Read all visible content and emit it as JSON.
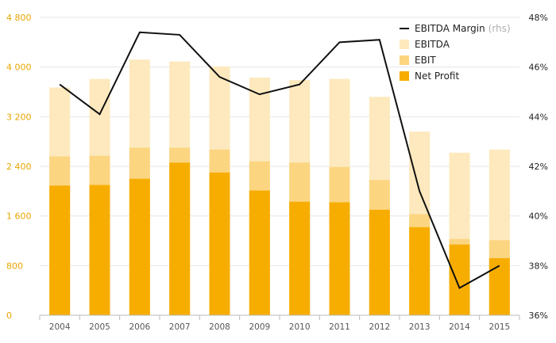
{
  "chart_data": {
    "type": "bar",
    "stacking": "overlay",
    "categories": [
      "2004",
      "2005",
      "2006",
      "2007",
      "2008",
      "2009",
      "2010",
      "2011",
      "2012",
      "2013",
      "2014",
      "2015"
    ],
    "series": [
      {
        "name": "EBITDA",
        "kind": "bar",
        "axis": "left",
        "color": "#fde9bd",
        "values": [
          3670,
          3810,
          4120,
          4090,
          4010,
          3830,
          3790,
          3810,
          3520,
          2960,
          2620,
          2670
        ]
      },
      {
        "name": "EBIT",
        "kind": "bar",
        "axis": "left",
        "color": "#fcd581",
        "values": [
          2560,
          2570,
          2700,
          2700,
          2670,
          2480,
          2460,
          2390,
          2180,
          1630,
          1230,
          1210
        ]
      },
      {
        "name": "Net Profit",
        "kind": "bar",
        "axis": "left",
        "color": "#f7ad00",
        "values": [
          2090,
          2100,
          2200,
          2460,
          2300,
          2010,
          1830,
          1820,
          1700,
          1420,
          1140,
          920
        ]
      },
      {
        "name": "EBITDA Margin",
        "name_suffix": "(rhs)",
        "kind": "line",
        "axis": "right",
        "color": "#111111",
        "values": [
          45.3,
          44.1,
          47.4,
          47.3,
          45.6,
          44.9,
          45.3,
          47.0,
          47.1,
          41.0,
          37.1,
          38.0
        ]
      }
    ],
    "y_left": {
      "min": 0,
      "max": 4800,
      "ticks": [
        0,
        800,
        1600,
        2400,
        3200,
        4000,
        4800
      ],
      "tick_labels": [
        "0",
        "800",
        "1 600",
        "2 400",
        "3 200",
        "4 000",
        "4 800"
      ]
    },
    "y_right": {
      "min": 36,
      "max": 48,
      "ticks": [
        36,
        38,
        40,
        42,
        44,
        46,
        48
      ],
      "tick_labels": [
        "36%",
        "38%",
        "40%",
        "42%",
        "44%",
        "46%",
        "48%"
      ]
    },
    "grid": "horizontal",
    "legend_position": "top-right",
    "legend_order": [
      "EBITDA Margin",
      "EBITDA",
      "EBIT",
      "Net Profit"
    ],
    "colors": {
      "left_axis_text": "#e8a500",
      "gridline": "#e6e6e6",
      "axis_line": "#bbbbbb"
    }
  }
}
